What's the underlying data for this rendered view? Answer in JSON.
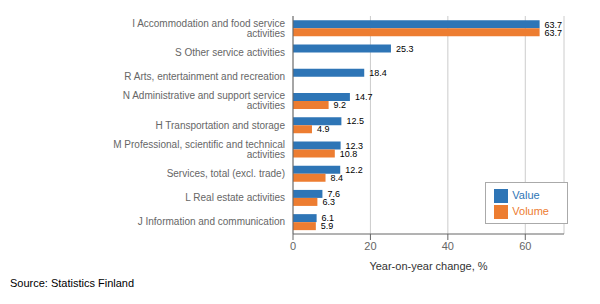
{
  "chart_data": {
    "type": "bar",
    "orientation": "horizontal",
    "categories": [
      "J Information and communication",
      "L Real estate activities",
      "Services, total (excl. trade)",
      "M Professional, scientific and technical activities",
      "H Transportation and storage",
      "N Administrative and support service activities",
      "R Arts, entertainment and recreation",
      "S Other service activities",
      "I Accommodation and food service activities"
    ],
    "series": [
      {
        "name": "Value",
        "color": "#2E75B6",
        "values": [
          6.1,
          7.6,
          12.2,
          12.3,
          12.5,
          14.7,
          18.4,
          25.3,
          63.7
        ]
      },
      {
        "name": "Volume",
        "color": "#ED7D31",
        "values": [
          5.9,
          6.3,
          8.4,
          10.8,
          4.9,
          9.2,
          null,
          null,
          63.7
        ]
      }
    ],
    "xlabel": "Year-on-year change, %",
    "xlim": [
      0,
      70
    ],
    "xticks": [
      0,
      20,
      40,
      60
    ],
    "grid": true,
    "legend": "lower right",
    "data_labels": true,
    "annotations": [
      "Source: Statistics Finland"
    ]
  }
}
